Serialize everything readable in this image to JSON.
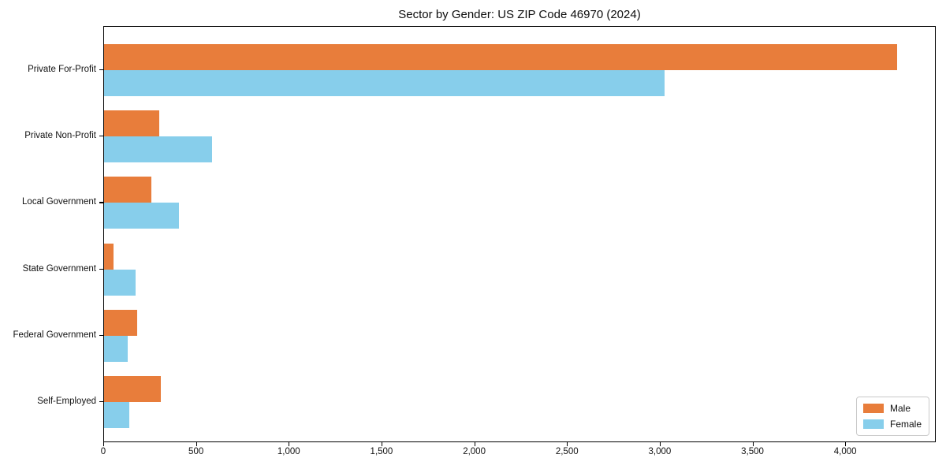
{
  "figure": {
    "title": "Sector by Gender: US ZIP Code 46970 (2024)"
  },
  "chart_data": {
    "type": "bar",
    "orientation": "horizontal",
    "title": "Sector by Gender: US ZIP Code 46970 (2024)",
    "categories": [
      "Private For-Profit",
      "Private Non-Profit",
      "Local Government",
      "State Government",
      "Federal Government",
      "Self-Employed"
    ],
    "series": [
      {
        "name": "Male",
        "color": "#e87d3b",
        "values": [
          4276,
          297,
          255,
          51,
          178,
          306
        ]
      },
      {
        "name": "Female",
        "color": "#87ceeb",
        "values": [
          3023,
          582,
          403,
          170,
          127,
          136
        ]
      }
    ],
    "xlabel": "",
    "ylabel": "",
    "xlim": [
      0,
      4488
    ],
    "xticks": [
      0,
      500,
      1000,
      1500,
      2000,
      2500,
      3000,
      3500,
      4000
    ],
    "xtick_labels": [
      "0",
      "500",
      "1,000",
      "1,500",
      "2,000",
      "2,500",
      "3,000",
      "3,500",
      "4,000"
    ],
    "grid": false,
    "legend": {
      "position": "lower right",
      "entries": [
        "Male",
        "Female"
      ]
    }
  }
}
